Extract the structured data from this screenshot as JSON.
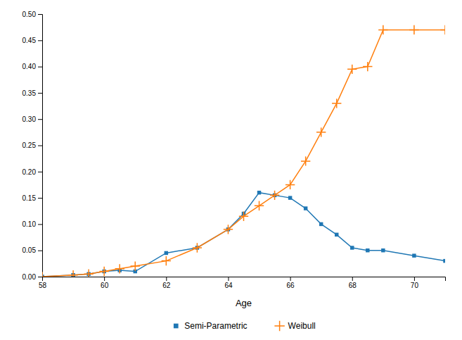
{
  "chart_data": {
    "type": "line",
    "xlabel": "Age",
    "x": [
      58,
      59,
      59.5,
      60,
      60.5,
      61,
      62,
      63,
      64,
      64.5,
      65,
      65.5,
      66,
      66.5,
      67,
      67.5,
      68,
      68.5,
      69,
      70,
      71
    ],
    "series": [
      {
        "name": "Semi-Parametric",
        "marker": "square",
        "values": [
          0.0,
          0.003,
          0.005,
          0.01,
          0.012,
          0.01,
          0.045,
          0.055,
          0.09,
          0.12,
          0.16,
          0.155,
          0.15,
          0.13,
          0.1,
          0.08,
          0.055,
          0.05,
          0.05,
          0.04,
          0.03
        ]
      },
      {
        "name": "Weibull",
        "marker": "plus",
        "values": [
          0.0,
          0.003,
          0.005,
          0.01,
          0.015,
          0.02,
          0.03,
          0.055,
          0.09,
          0.115,
          0.135,
          0.155,
          0.175,
          0.22,
          0.275,
          0.33,
          0.395,
          0.4,
          0.47,
          0.47,
          0.47
        ]
      }
    ],
    "xlim": [
      58,
      71
    ],
    "ylim": [
      0,
      0.5
    ],
    "xticks": [
      58,
      60,
      62,
      64,
      66,
      68,
      70
    ],
    "yticks": [
      {
        "value": 0,
        "label": "0.00"
      },
      {
        "value": 0.05,
        "label": "0.05"
      },
      {
        "value": 0.1,
        "label": "0.10"
      },
      {
        "value": 0.15,
        "label": "0.15"
      },
      {
        "value": 0.2,
        "label": "0.20"
      },
      {
        "value": 0.25,
        "label": "0.25"
      },
      {
        "value": 0.3,
        "label": "0.30"
      },
      {
        "value": 0.35,
        "label": "0.35"
      },
      {
        "value": 0.4,
        "label": "0.40"
      },
      {
        "value": 0.45,
        "label": "0.45"
      },
      {
        "value": 0.5,
        "label": "0.50"
      }
    ],
    "grid": false,
    "legend": "bottom"
  }
}
